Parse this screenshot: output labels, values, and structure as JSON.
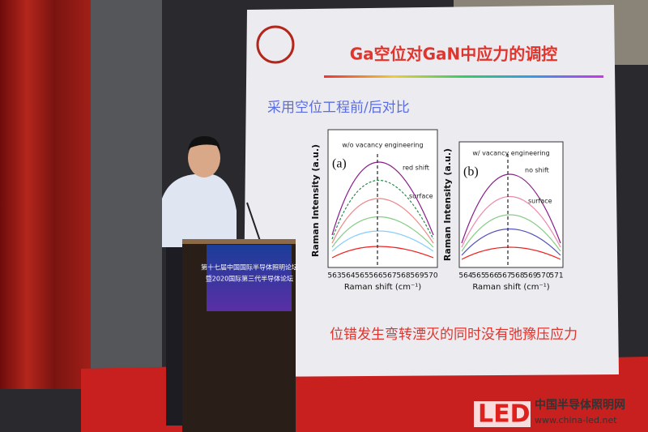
{
  "slide": {
    "title": "Ga空位对GaN中应力的调控",
    "subtitle": "采用空位工程前/后对比",
    "conclusion": "位错发生弯转湮灭的同时没有弛豫压应力",
    "plot_a": {
      "legend": "w/o vacancy engineering",
      "panel": "(a)",
      "annotations": [
        "red shift",
        "surface"
      ],
      "y_label": "Raman Intensity (a.u.)",
      "x_label": "Raman shift (cm⁻¹)",
      "x_ticks": [
        "563",
        "564",
        "565",
        "566",
        "567",
        "568",
        "569",
        "570"
      ]
    },
    "plot_b": {
      "legend": "w/ vacancy engineering",
      "panel": "(b)",
      "annotations": [
        "no shift",
        "surface"
      ],
      "y_label": "Raman Intensity (a.u.)",
      "x_label": "Raman shift (cm⁻¹)",
      "x_ticks": [
        "564",
        "565",
        "566",
        "567",
        "568",
        "569",
        "570",
        "571"
      ]
    }
  },
  "podium": {
    "lines": [
      "第十七届中国国际半导体照明论坛",
      "暨2020国际第三代半导体论坛"
    ]
  },
  "watermark": {
    "logo": "LED",
    "site_name": "中国半导体照明网",
    "url": "www.china-led.net"
  }
}
